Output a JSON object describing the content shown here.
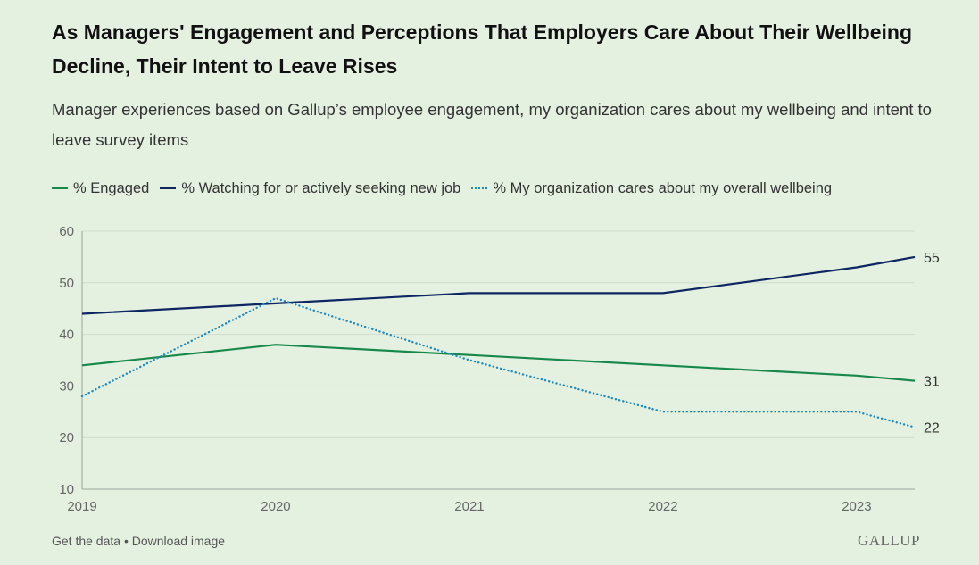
{
  "header": {
    "title": "As Managers' Engagement and Perceptions That Employers Care About Their Wellbeing Decline, Their Intent to Leave Rises",
    "subtitle": "Manager experiences based on Gallup’s employee engagement, my organization cares about my wellbeing and intent to leave survey items"
  },
  "footer": {
    "get_data": "Get the data",
    "separator": " • ",
    "download": "Download image",
    "logo": "GALLUP"
  },
  "colors": {
    "engaged": "#16894a",
    "seeking": "#0d2561",
    "cares": "#1f8bc0",
    "grid": "#cfdccc",
    "axis": "#9aa59a"
  },
  "chart_data": {
    "type": "line",
    "xlim": [
      2019,
      2023.3
    ],
    "ylim": [
      10,
      60
    ],
    "y_ticks": [
      10,
      20,
      30,
      40,
      50,
      60
    ],
    "x_ticks": [
      2019,
      2020,
      2021,
      2022,
      2023
    ],
    "grid": true,
    "legend_position": "top-left",
    "series": [
      {
        "key": "engaged",
        "name": "% Engaged",
        "style": "solid",
        "x": [
          2019,
          2020,
          2021,
          2022,
          2023,
          2023.3
        ],
        "y": [
          34,
          38,
          36,
          34,
          32,
          31
        ],
        "end_label": "31"
      },
      {
        "key": "seeking",
        "name": "% Watching for or actively seeking new job",
        "style": "solid",
        "x": [
          2019,
          2020,
          2021,
          2022,
          2023,
          2023.3
        ],
        "y": [
          44,
          46,
          48,
          48,
          53,
          55
        ],
        "end_label": "55"
      },
      {
        "key": "cares",
        "name": "% My organization cares about my overall wellbeing",
        "style": "dotted",
        "x": [
          2019,
          2020,
          2021,
          2022,
          2023,
          2023.3
        ],
        "y": [
          28,
          47,
          35,
          25,
          25,
          22
        ],
        "end_label": "22"
      }
    ]
  }
}
